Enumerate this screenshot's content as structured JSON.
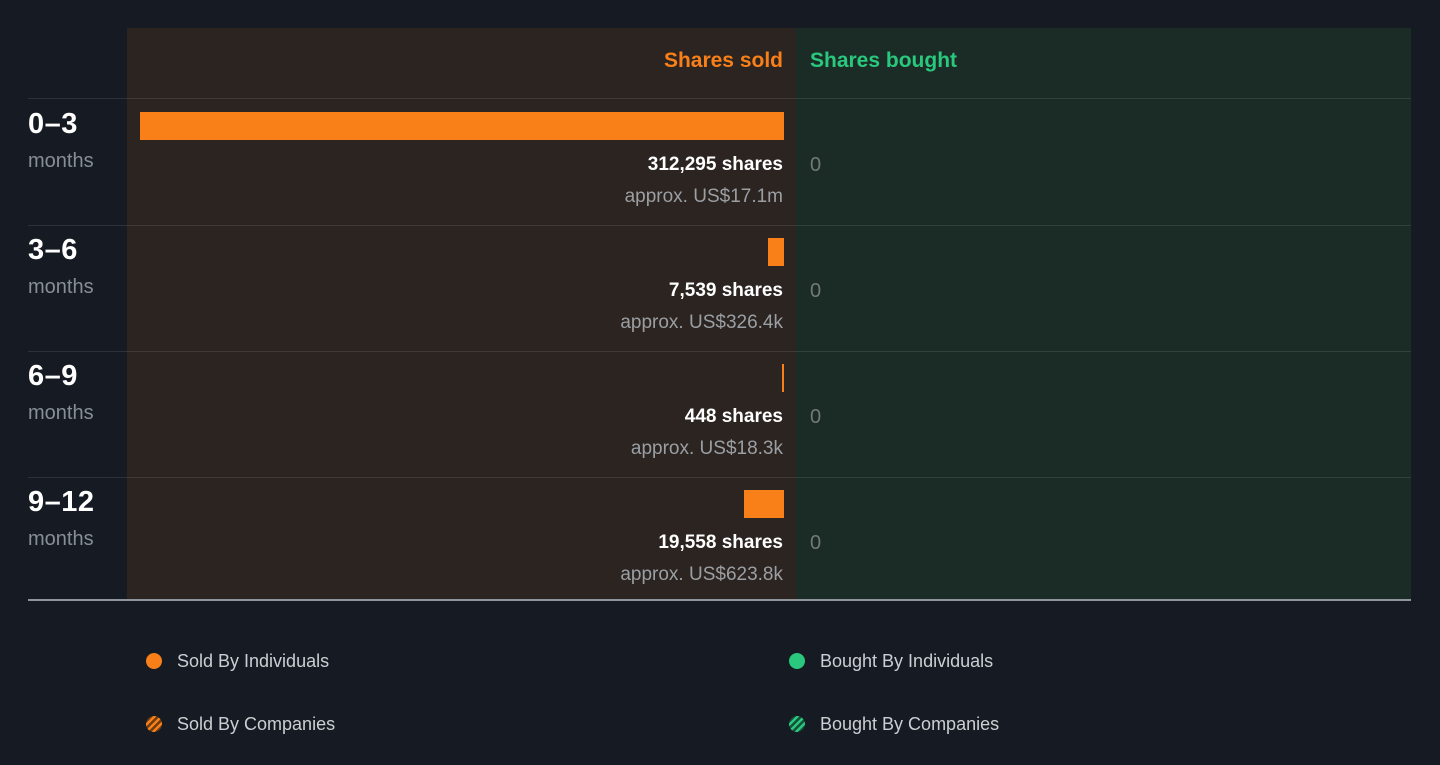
{
  "colors": {
    "page_background": "#161b23",
    "sold_panel_background": "#2b2420",
    "bought_panel_background": "#1b2c26",
    "sold_accent": "#f98019",
    "bought_accent": "#29c87d"
  },
  "chart_data": {
    "type": "bar",
    "orientation": "horizontal",
    "sold_header": "Shares sold",
    "bought_header": "Shares bought",
    "categories": [
      "0–3 months",
      "3–6 months",
      "6–9 months",
      "9–12 months"
    ],
    "series": [
      {
        "name": "Shares sold",
        "color": "#f98019",
        "values": [
          312295,
          7539,
          448,
          19558
        ],
        "value_labels": [
          "approx. US$17.1m",
          "approx. US$326.4k",
          "approx. US$18.3k",
          "approx. US$623.8k"
        ]
      },
      {
        "name": "Shares bought",
        "color": "#29c87d",
        "values": [
          0,
          0,
          0,
          0
        ]
      }
    ],
    "rows": [
      {
        "period": "0–3",
        "unit": "months",
        "sold_shares": 312295,
        "sold_shares_label": "312,295 shares",
        "sold_value_label": "approx. US$17.1m",
        "bought_label": "0"
      },
      {
        "period": "3–6",
        "unit": "months",
        "sold_shares": 7539,
        "sold_shares_label": "7,539 shares",
        "sold_value_label": "approx. US$326.4k",
        "bought_label": "0"
      },
      {
        "period": "6–9",
        "unit": "months",
        "sold_shares": 448,
        "sold_shares_label": "448 shares",
        "sold_value_label": "approx. US$18.3k",
        "bought_label": "0"
      },
      {
        "period": "9–12",
        "unit": "months",
        "sold_shares": 19558,
        "sold_shares_label": "19,558 shares",
        "sold_value_label": "approx. US$623.8k",
        "bought_label": "0"
      }
    ]
  },
  "legend": {
    "items": [
      {
        "label": "Sold By Individuals",
        "swatch": "orange-solid"
      },
      {
        "label": "Sold By Companies",
        "swatch": "orange-hatched"
      },
      {
        "label": "Bought By Individuals",
        "swatch": "green-solid"
      },
      {
        "label": "Bought By Companies",
        "swatch": "green-hatched"
      }
    ]
  }
}
